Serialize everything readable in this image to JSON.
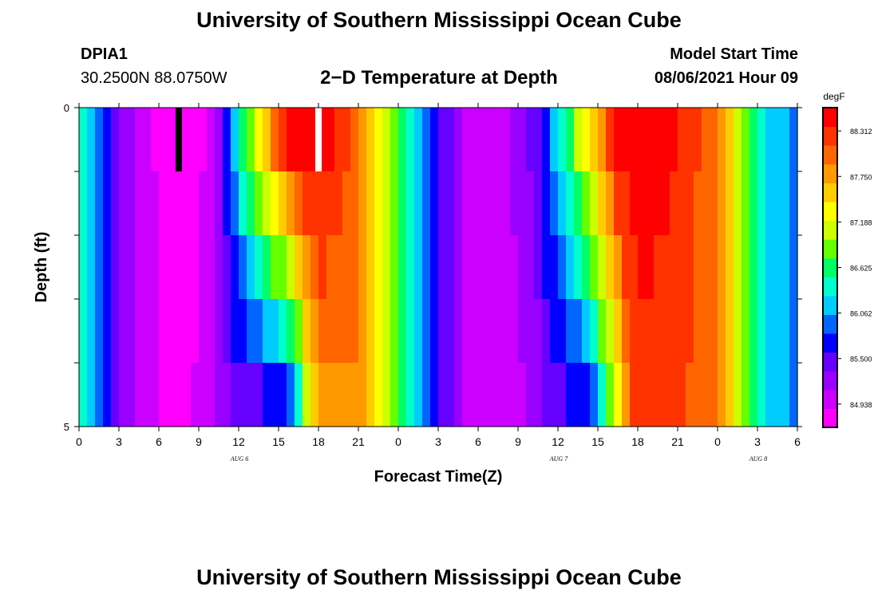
{
  "header": {
    "title": "University of Southern Mississippi Ocean Cube",
    "station": "DPIA1",
    "coords": "30.2500N  88.0750W",
    "subtitle": "2−D Temperature at Depth",
    "model_label": "Model Start Time",
    "model_time": "08/06/2021 Hour 09"
  },
  "footer": {
    "title": "University of Southern Mississippi Ocean Cube"
  },
  "colors": {
    "palette": [
      "#ff00ff",
      "#cc00ff",
      "#9900ff",
      "#6600ff",
      "#0000ff",
      "#0066ff",
      "#00ccff",
      "#00ffcc",
      "#00ff66",
      "#66ff00",
      "#ccff00",
      "#ffff00",
      "#ffcc00",
      "#ff9900",
      "#ff6600",
      "#ff3300",
      "#ff0000"
    ]
  },
  "chart_data": {
    "type": "heatmap",
    "xlabel": "Forecast Time(Z)",
    "ylabel": "Depth (ft)",
    "x_hours": [
      0,
      54
    ],
    "ylim": [
      0,
      5
    ],
    "y_ticks": [
      "0",
      "5"
    ],
    "x_tick_labels": [
      "0",
      "3",
      "6",
      "9",
      "12",
      "15",
      "18",
      "21",
      "0",
      "3",
      "6",
      "9",
      "12",
      "15",
      "18",
      "21",
      "0",
      "3",
      "6"
    ],
    "day_labels": [
      {
        "text": "AUG  6",
        "hour": 12
      },
      {
        "text": "AUG  7",
        "hour": 36
      },
      {
        "text": "AUG  8",
        "hour": 51
      }
    ],
    "colorbar": {
      "unit": "degF",
      "min": 84.65,
      "max": 88.6,
      "ticks": [
        "88.312",
        "87.750",
        "87.188",
        "86.625",
        "86.062",
        "85.500",
        "84.938"
      ]
    },
    "depth_layers": [
      0.5,
      1.5,
      2.5,
      3.5,
      4.5
    ],
    "temperature_degF_by_hour": {
      "hours": [
        0,
        1.5,
        3,
        5,
        7,
        9,
        10.5,
        11.5,
        12.5,
        13.5,
        14.5,
        15.5,
        16.5,
        17.5,
        18.5,
        21,
        22.5,
        24,
        25.5,
        27,
        29,
        31,
        33,
        34.5,
        35.5,
        36.5,
        37.5,
        38.5,
        39.5,
        40.5,
        41.5,
        42,
        45,
        48,
        49.5,
        51,
        52.5,
        54
      ],
      "surface": [
        86.4,
        85.9,
        85.4,
        84.95,
        84.75,
        84.8,
        85.2,
        86.0,
        86.7,
        87.3,
        87.9,
        88.3,
        88.5,
        88.55,
        88.45,
        88.0,
        87.3,
        86.7,
        86.1,
        85.6,
        85.1,
        84.95,
        85.2,
        85.5,
        86.0,
        86.5,
        87.0,
        87.5,
        88.0,
        88.4,
        88.55,
        88.55,
        88.4,
        87.9,
        87.2,
        86.5,
        86.1,
        86.0
      ],
      "bottom": [
        86.4,
        85.9,
        85.4,
        84.95,
        84.8,
        84.9,
        85.15,
        85.4,
        85.5,
        85.55,
        85.6,
        85.7,
        86.4,
        87.6,
        87.9,
        87.85,
        87.3,
        86.7,
        86.1,
        85.6,
        85.1,
        84.95,
        85.05,
        85.25,
        85.45,
        85.55,
        85.65,
        85.9,
        86.5,
        87.4,
        88.1,
        88.25,
        88.2,
        87.9,
        87.2,
        86.5,
        86.1,
        86.0
      ]
    },
    "markers": [
      {
        "hour": 7.5,
        "color": "#000000"
      },
      {
        "hour": 18,
        "color": "#ffffff"
      }
    ]
  }
}
